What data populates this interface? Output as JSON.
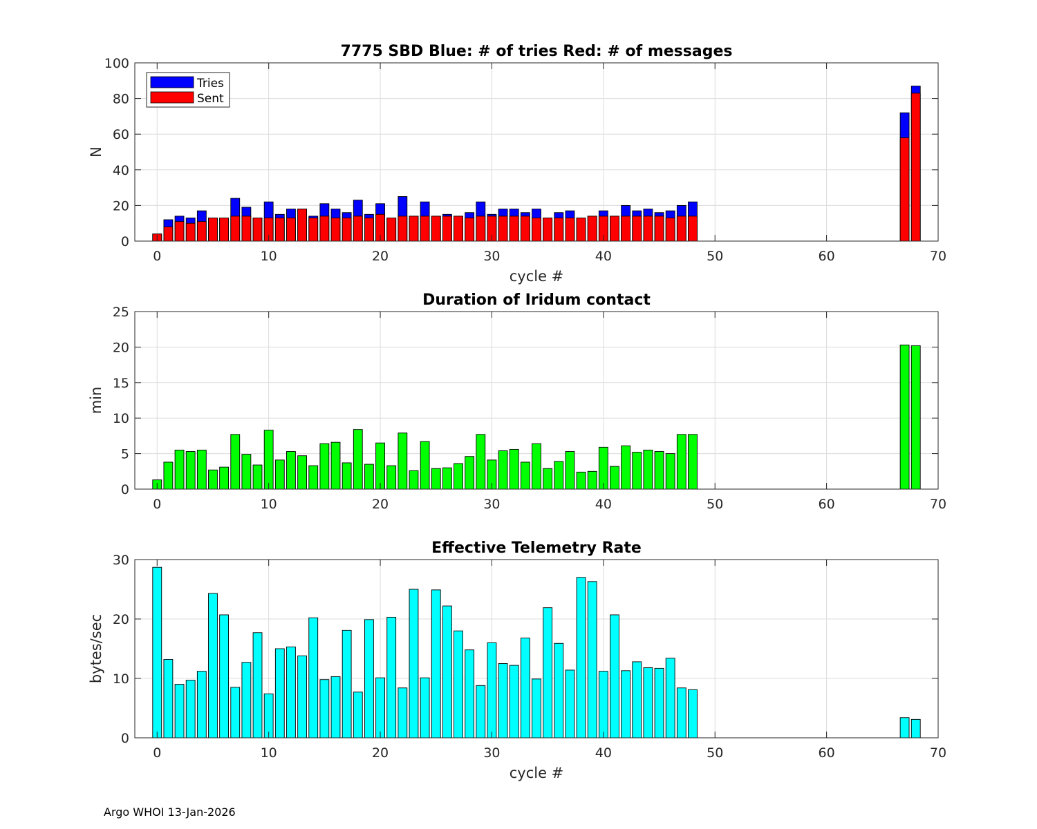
{
  "footer": "Argo WHOI 13-Jan-2026",
  "colors": {
    "tries": "#0000ff",
    "sent": "#ff0000",
    "duration": "#00ff00",
    "rate": "#00ffff",
    "edge": "#000000",
    "grid": "#dcdcdc",
    "axis": "#262626"
  },
  "chart_data": [
    {
      "type": "bar",
      "stacked": "overlay",
      "title": "7775 SBD  Blue: # of tries   Red: # of messages",
      "xlabel": "cycle #",
      "ylabel": "N",
      "xlim": [
        -2,
        70
      ],
      "ylim": [
        0,
        100
      ],
      "xticks": [
        0,
        10,
        20,
        30,
        40,
        50,
        60,
        70
      ],
      "yticks": [
        0,
        20,
        40,
        60,
        80,
        100
      ],
      "legend": [
        "Tries",
        "Sent"
      ],
      "legend_location": "top-left",
      "x": [
        0,
        1,
        2,
        3,
        4,
        5,
        6,
        7,
        8,
        9,
        10,
        11,
        12,
        13,
        14,
        15,
        16,
        17,
        18,
        19,
        20,
        21,
        22,
        23,
        24,
        25,
        26,
        27,
        28,
        29,
        30,
        31,
        32,
        33,
        34,
        35,
        36,
        37,
        38,
        39,
        40,
        41,
        42,
        43,
        44,
        45,
        46,
        47,
        48,
        49,
        50,
        51,
        52,
        53,
        54,
        55,
        56,
        57,
        58,
        59,
        60,
        61,
        62,
        63,
        64,
        65,
        66,
        67,
        68
      ],
      "series": [
        {
          "name": "Tries",
          "values": [
            4,
            12,
            14,
            13,
            17,
            13,
            13,
            24,
            19,
            13,
            22,
            15,
            18,
            18,
            14,
            21,
            18,
            16,
            23,
            15,
            21,
            13,
            25,
            14,
            22,
            14,
            15,
            14,
            16,
            22,
            15,
            18,
            18,
            16,
            18,
            13,
            16,
            17,
            13,
            14,
            17,
            14,
            20,
            17,
            18,
            16,
            17,
            20,
            22,
            0,
            0,
            0,
            0,
            0,
            0,
            0,
            0,
            0,
            0,
            0,
            0,
            0,
            0,
            0,
            0,
            0,
            0,
            72,
            87
          ]
        },
        {
          "name": "Sent",
          "values": [
            4,
            8,
            11,
            10,
            11,
            13,
            13,
            14,
            14,
            13,
            13,
            13,
            13,
            18,
            13,
            14,
            13,
            13,
            14,
            13,
            15,
            13,
            14,
            14,
            14,
            14,
            14,
            14,
            13,
            14,
            14,
            14,
            14,
            14,
            13,
            13,
            13,
            13,
            13,
            14,
            14,
            14,
            14,
            14,
            14,
            14,
            13,
            14,
            14,
            0,
            0,
            0,
            0,
            0,
            0,
            0,
            0,
            0,
            0,
            0,
            0,
            0,
            0,
            0,
            0,
            0,
            0,
            58,
            83
          ]
        }
      ]
    },
    {
      "type": "bar",
      "title": "Duration of Iridum contact",
      "xlabel": "",
      "ylabel": "min",
      "xlim": [
        -2,
        70
      ],
      "ylim": [
        0,
        25
      ],
      "xticks": [
        0,
        10,
        20,
        30,
        40,
        50,
        60,
        70
      ],
      "yticks": [
        0,
        5,
        10,
        15,
        20,
        25
      ],
      "x": [
        0,
        1,
        2,
        3,
        4,
        5,
        6,
        7,
        8,
        9,
        10,
        11,
        12,
        13,
        14,
        15,
        16,
        17,
        18,
        19,
        20,
        21,
        22,
        23,
        24,
        25,
        26,
        27,
        28,
        29,
        30,
        31,
        32,
        33,
        34,
        35,
        36,
        37,
        38,
        39,
        40,
        41,
        42,
        43,
        44,
        45,
        46,
        47,
        48,
        49,
        50,
        51,
        52,
        53,
        54,
        55,
        56,
        57,
        58,
        59,
        60,
        61,
        62,
        63,
        64,
        65,
        66,
        67,
        68
      ],
      "values": [
        1.3,
        3.8,
        5.5,
        5.3,
        5.5,
        2.7,
        3.1,
        7.7,
        4.9,
        3.4,
        8.3,
        4.1,
        5.3,
        4.7,
        3.3,
        6.4,
        6.6,
        3.7,
        8.4,
        3.5,
        6.5,
        3.3,
        7.9,
        2.6,
        6.7,
        2.9,
        3.0,
        3.6,
        4.6,
        7.7,
        4.1,
        5.4,
        5.6,
        3.8,
        6.4,
        2.9,
        3.9,
        5.3,
        2.4,
        2.5,
        5.9,
        3.2,
        6.1,
        5.2,
        5.5,
        5.3,
        5.0,
        7.7,
        7.7,
        0,
        0,
        0,
        0,
        0,
        0,
        0,
        0,
        0,
        0,
        0,
        0,
        0,
        0,
        0,
        0,
        0,
        0,
        20.3,
        20.2
      ]
    },
    {
      "type": "bar",
      "title": "Effective Telemetry Rate",
      "xlabel": "cycle #",
      "ylabel": "bytes/sec",
      "xlim": [
        -2,
        70
      ],
      "ylim": [
        0,
        30
      ],
      "xticks": [
        0,
        10,
        20,
        30,
        40,
        50,
        60,
        70
      ],
      "yticks": [
        0,
        10,
        20,
        30
      ],
      "x": [
        0,
        1,
        2,
        3,
        4,
        5,
        6,
        7,
        8,
        9,
        10,
        11,
        12,
        13,
        14,
        15,
        16,
        17,
        18,
        19,
        20,
        21,
        22,
        23,
        24,
        25,
        26,
        27,
        28,
        29,
        30,
        31,
        32,
        33,
        34,
        35,
        36,
        37,
        38,
        39,
        40,
        41,
        42,
        43,
        44,
        45,
        46,
        47,
        48,
        67,
        68
      ],
      "values": [
        28.7,
        13.2,
        9.0,
        9.7,
        11.2,
        24.3,
        20.7,
        8.5,
        12.7,
        17.7,
        7.4,
        15.0,
        15.3,
        13.8,
        20.2,
        9.8,
        10.3,
        18.1,
        7.7,
        19.9,
        10.1,
        20.3,
        8.4,
        25.0,
        10.1,
        24.9,
        22.2,
        18.0,
        14.8,
        8.8,
        16.0,
        12.5,
        12.2,
        16.8,
        9.9,
        21.9,
        15.9,
        11.4,
        27.0,
        26.3,
        11.2,
        20.7,
        11.3,
        12.8,
        11.8,
        11.7,
        13.4,
        8.4,
        8.1,
        3.4,
        3.1
      ]
    }
  ]
}
